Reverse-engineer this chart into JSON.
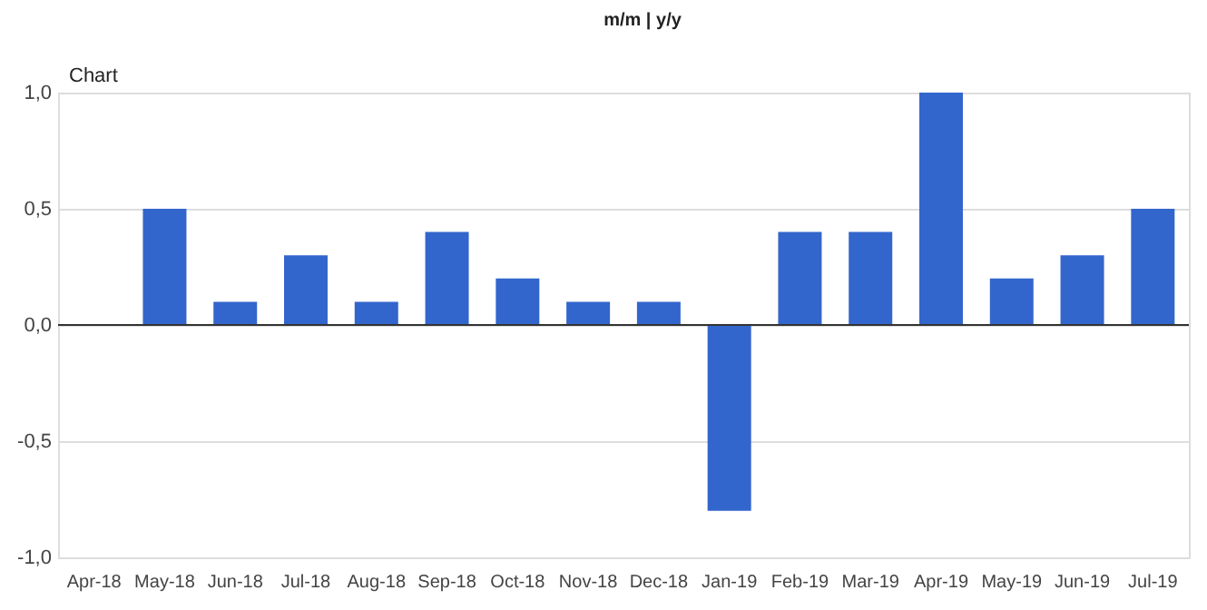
{
  "chart_data": {
    "type": "bar",
    "title": "Chart",
    "annotations": [
      "m/m | y/y"
    ],
    "categories": [
      "Apr-18",
      "May-18",
      "Jun-18",
      "Jul-18",
      "Aug-18",
      "Sep-18",
      "Oct-18",
      "Nov-18",
      "Dec-18",
      "Jan-19",
      "Feb-19",
      "Mar-19",
      "Apr-19",
      "May-19",
      "Jun-19",
      "Jul-19"
    ],
    "values": [
      0,
      0.5,
      0.1,
      0.3,
      0.1,
      0.4,
      0.2,
      0.1,
      0.1,
      -0.8,
      0.4,
      0.4,
      1.0,
      0.2,
      0.3,
      0.5
    ],
    "color": "#3366cc",
    "ylim": [
      -1,
      1
    ],
    "yticks": [
      {
        "value": -1,
        "label": "-1,0"
      },
      {
        "value": -0.5,
        "label": "-0,5"
      },
      {
        "value": 0,
        "label": "0,0"
      },
      {
        "value": 0.5,
        "label": "0,5"
      },
      {
        "value": 1,
        "label": "1,0"
      }
    ],
    "grid": "y"
  }
}
